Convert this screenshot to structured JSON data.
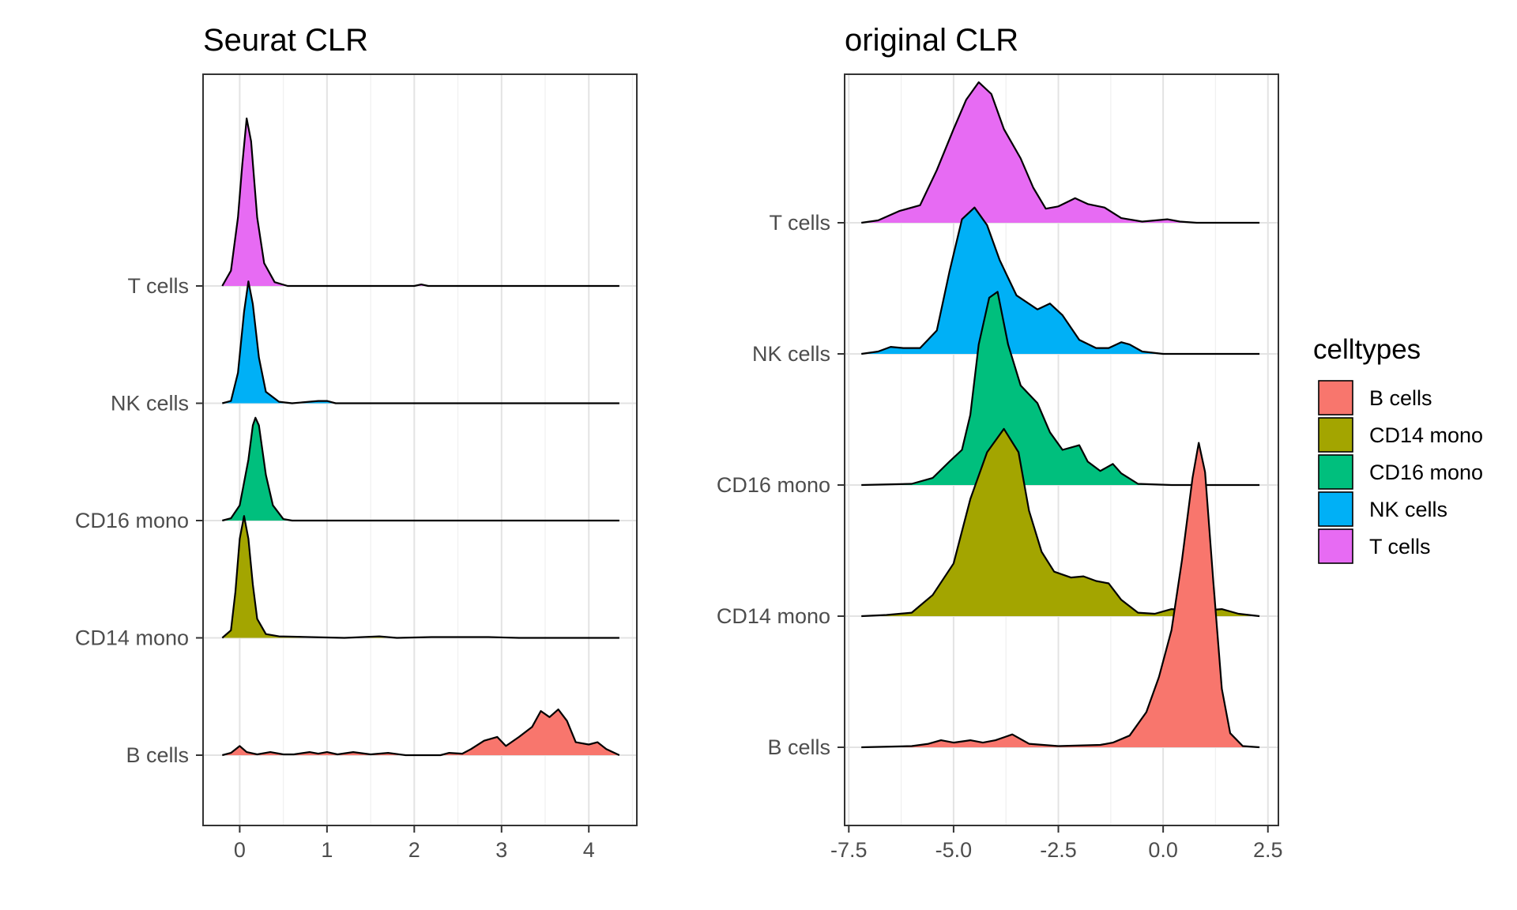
{
  "chart_data": {
    "type": "ridgeline",
    "legend": {
      "title": "celltypes",
      "position": "right",
      "entries": [
        {
          "name": "B cells",
          "color": "#F8766D"
        },
        {
          "name": "CD14 mono",
          "color": "#A3A500"
        },
        {
          "name": "CD16 mono",
          "color": "#00BF7D"
        },
        {
          "name": "NK cells",
          "color": "#00B0F6"
        },
        {
          "name": "T cells",
          "color": "#E76BF3"
        }
      ]
    },
    "panels": [
      {
        "title": "Seurat CLR",
        "xlim": [
          -0.42,
          4.55
        ],
        "xticks": [
          0,
          1,
          2,
          3,
          4
        ],
        "xtick_labels": [
          "0",
          "1",
          "2",
          "3",
          "4"
        ],
        "minor_grid": true,
        "grid": true,
        "ridge_unit": 1.54,
        "categories": [
          "B cells",
          "CD14 mono",
          "CD16 mono",
          "NK cells",
          "T cells"
        ],
        "series": [
          {
            "name": "B cells",
            "x_range": [
              -0.2,
              4.35
            ],
            "points": [
              [
                -0.2,
                0
              ],
              [
                -0.1,
                0.03
              ],
              [
                0.0,
                0.12
              ],
              [
                0.08,
                0.04
              ],
              [
                0.2,
                0.01
              ],
              [
                0.35,
                0.04
              ],
              [
                0.5,
                0.01
              ],
              [
                0.62,
                0.01
              ],
              [
                0.8,
                0.04
              ],
              [
                0.9,
                0.02
              ],
              [
                1.0,
                0.04
              ],
              [
                1.12,
                0.01
              ],
              [
                1.3,
                0.04
              ],
              [
                1.5,
                0.01
              ],
              [
                1.7,
                0.03
              ],
              [
                1.9,
                0
              ],
              [
                2.1,
                0
              ],
              [
                2.3,
                0
              ],
              [
                2.4,
                0.03
              ],
              [
                2.55,
                0.02
              ],
              [
                2.65,
                0.08
              ],
              [
                2.8,
                0.19
              ],
              [
                2.95,
                0.24
              ],
              [
                3.05,
                0.12
              ],
              [
                3.2,
                0.24
              ],
              [
                3.35,
                0.37
              ],
              [
                3.45,
                0.58
              ],
              [
                3.55,
                0.5
              ],
              [
                3.65,
                0.6
              ],
              [
                3.75,
                0.45
              ],
              [
                3.85,
                0.17
              ],
              [
                4.0,
                0.14
              ],
              [
                4.1,
                0.17
              ],
              [
                4.2,
                0.08
              ],
              [
                4.35,
                0
              ]
            ]
          },
          {
            "name": "CD14 mono",
            "x_range": [
              -0.2,
              4.35
            ],
            "points": [
              [
                -0.2,
                0
              ],
              [
                -0.1,
                0.1
              ],
              [
                -0.05,
                0.6
              ],
              [
                0.0,
                1.3
              ],
              [
                0.05,
                1.6
              ],
              [
                0.1,
                1.3
              ],
              [
                0.15,
                0.7
              ],
              [
                0.2,
                0.25
              ],
              [
                0.3,
                0.05
              ],
              [
                0.45,
                0.02
              ],
              [
                0.8,
                0.01
              ],
              [
                1.2,
                0
              ],
              [
                1.6,
                0.02
              ],
              [
                1.8,
                0
              ],
              [
                2.2,
                0.01
              ],
              [
                2.5,
                0.01
              ],
              [
                2.85,
                0.01
              ],
              [
                3.2,
                0
              ],
              [
                4.35,
                0
              ]
            ]
          },
          {
            "name": "CD16 mono",
            "x_range": [
              -0.2,
              4.35
            ],
            "points": [
              [
                -0.2,
                0
              ],
              [
                -0.1,
                0.03
              ],
              [
                0.0,
                0.2
              ],
              [
                0.1,
                0.8
              ],
              [
                0.15,
                1.25
              ],
              [
                0.18,
                1.35
              ],
              [
                0.22,
                1.25
              ],
              [
                0.3,
                0.6
              ],
              [
                0.38,
                0.2
              ],
              [
                0.5,
                0.02
              ],
              [
                0.6,
                0
              ],
              [
                4.35,
                0
              ]
            ]
          },
          {
            "name": "NK cells",
            "x_range": [
              -0.2,
              4.35
            ],
            "points": [
              [
                -0.2,
                0
              ],
              [
                -0.1,
                0.03
              ],
              [
                -0.02,
                0.4
              ],
              [
                0.05,
                1.2
              ],
              [
                0.1,
                1.6
              ],
              [
                0.15,
                1.3
              ],
              [
                0.22,
                0.6
              ],
              [
                0.3,
                0.15
              ],
              [
                0.45,
                0.02
              ],
              [
                0.6,
                0
              ],
              [
                0.9,
                0.03
              ],
              [
                1.0,
                0.03
              ],
              [
                1.1,
                0
              ],
              [
                4.35,
                0
              ]
            ]
          },
          {
            "name": "T cells",
            "x_range": [
              -0.2,
              4.35
            ],
            "points": [
              [
                -0.2,
                0
              ],
              [
                -0.1,
                0.2
              ],
              [
                -0.02,
                0.9
              ],
              [
                0.03,
                1.6
              ],
              [
                0.08,
                2.2
              ],
              [
                0.13,
                1.9
              ],
              [
                0.2,
                0.9
              ],
              [
                0.28,
                0.3
              ],
              [
                0.4,
                0.05
              ],
              [
                0.55,
                0
              ],
              [
                2.0,
                0
              ],
              [
                2.08,
                0.02
              ],
              [
                2.16,
                0
              ],
              [
                4.35,
                0
              ]
            ]
          }
        ]
      },
      {
        "title": "original CLR",
        "xlim": [
          -7.6,
          2.75
        ],
        "xticks": [
          -7.5,
          -5.0,
          -2.5,
          0.0,
          2.5
        ],
        "xtick_labels": [
          "-7.5",
          "-5.0",
          "-2.5",
          "0.0",
          "2.5"
        ],
        "minor_grid": true,
        "grid": true,
        "ridge_unit": 1.12,
        "categories": [
          "B cells",
          "CD14 mono",
          "CD16 mono",
          "NK cells",
          "T cells"
        ],
        "series": [
          {
            "name": "B cells",
            "x_range": [
              -7.2,
              2.3
            ],
            "points": [
              [
                -7.2,
                0
              ],
              [
                -6.0,
                0.01
              ],
              [
                -5.6,
                0.03
              ],
              [
                -5.3,
                0.06
              ],
              [
                -5.0,
                0.04
              ],
              [
                -4.6,
                0.06
              ],
              [
                -4.3,
                0.04
              ],
              [
                -4.0,
                0.06
              ],
              [
                -3.6,
                0.11
              ],
              [
                -3.2,
                0.03
              ],
              [
                -2.5,
                0.01
              ],
              [
                -1.5,
                0.02
              ],
              [
                -1.2,
                0.04
              ],
              [
                -0.8,
                0.1
              ],
              [
                -0.4,
                0.3
              ],
              [
                -0.1,
                0.6
              ],
              [
                0.2,
                1.0
              ],
              [
                0.45,
                1.6
              ],
              [
                0.7,
                2.3
              ],
              [
                0.85,
                2.6
              ],
              [
                1.0,
                2.35
              ],
              [
                1.2,
                1.4
              ],
              [
                1.4,
                0.5
              ],
              [
                1.6,
                0.12
              ],
              [
                1.9,
                0.01
              ],
              [
                2.3,
                0
              ]
            ]
          },
          {
            "name": "CD14 mono",
            "x_range": [
              -7.2,
              2.3
            ],
            "points": [
              [
                -7.2,
                0
              ],
              [
                -6.6,
                0.01
              ],
              [
                -6.0,
                0.03
              ],
              [
                -5.5,
                0.18
              ],
              [
                -5.0,
                0.45
              ],
              [
                -4.6,
                1.0
              ],
              [
                -4.2,
                1.4
              ],
              [
                -3.8,
                1.6
              ],
              [
                -3.45,
                1.4
              ],
              [
                -3.2,
                0.9
              ],
              [
                -2.9,
                0.55
              ],
              [
                -2.6,
                0.38
              ],
              [
                -2.2,
                0.33
              ],
              [
                -1.9,
                0.34
              ],
              [
                -1.6,
                0.3
              ],
              [
                -1.3,
                0.28
              ],
              [
                -1.0,
                0.14
              ],
              [
                -0.6,
                0.03
              ],
              [
                -0.2,
                0.02
              ],
              [
                0.2,
                0.06
              ],
              [
                0.6,
                0.05
              ],
              [
                1.0,
                0.05
              ],
              [
                1.4,
                0.06
              ],
              [
                1.8,
                0.02
              ],
              [
                2.3,
                0
              ]
            ]
          },
          {
            "name": "CD16 mono",
            "x_range": [
              -7.2,
              2.3
            ],
            "points": [
              [
                -7.2,
                0
              ],
              [
                -6.0,
                0.01
              ],
              [
                -5.5,
                0.06
              ],
              [
                -5.1,
                0.2
              ],
              [
                -4.8,
                0.3
              ],
              [
                -4.6,
                0.6
              ],
              [
                -4.4,
                1.2
              ],
              [
                -4.15,
                1.6
              ],
              [
                -3.95,
                1.65
              ],
              [
                -3.7,
                1.2
              ],
              [
                -3.4,
                0.85
              ],
              [
                -3.0,
                0.7
              ],
              [
                -2.7,
                0.45
              ],
              [
                -2.4,
                0.3
              ],
              [
                -2.0,
                0.34
              ],
              [
                -1.8,
                0.2
              ],
              [
                -1.5,
                0.12
              ],
              [
                -1.2,
                0.18
              ],
              [
                -1.0,
                0.1
              ],
              [
                -0.6,
                0.01
              ],
              [
                0.2,
                0
              ],
              [
                2.3,
                0
              ]
            ]
          },
          {
            "name": "NK cells",
            "x_range": [
              -7.2,
              2.3
            ],
            "points": [
              [
                -7.2,
                0
              ],
              [
                -6.8,
                0.02
              ],
              [
                -6.5,
                0.06
              ],
              [
                -6.2,
                0.05
              ],
              [
                -5.8,
                0.05
              ],
              [
                -5.4,
                0.2
              ],
              [
                -5.1,
                0.7
              ],
              [
                -4.8,
                1.15
              ],
              [
                -4.5,
                1.25
              ],
              [
                -4.2,
                1.1
              ],
              [
                -3.9,
                0.8
              ],
              [
                -3.5,
                0.5
              ],
              [
                -3.0,
                0.38
              ],
              [
                -2.7,
                0.43
              ],
              [
                -2.4,
                0.33
              ],
              [
                -2.0,
                0.12
              ],
              [
                -1.6,
                0.05
              ],
              [
                -1.3,
                0.05
              ],
              [
                -1.0,
                0.1
              ],
              [
                -0.8,
                0.08
              ],
              [
                -0.5,
                0.02
              ],
              [
                0.0,
                0
              ],
              [
                2.3,
                0
              ]
            ]
          },
          {
            "name": "T cells",
            "x_range": [
              -7.2,
              2.3
            ],
            "points": [
              [
                -7.2,
                0
              ],
              [
                -6.8,
                0.02
              ],
              [
                -6.3,
                0.1
              ],
              [
                -5.8,
                0.15
              ],
              [
                -5.4,
                0.45
              ],
              [
                -5.0,
                0.8
              ],
              [
                -4.7,
                1.05
              ],
              [
                -4.4,
                1.2
              ],
              [
                -4.1,
                1.1
              ],
              [
                -3.8,
                0.8
              ],
              [
                -3.4,
                0.55
              ],
              [
                -3.1,
                0.3
              ],
              [
                -2.8,
                0.12
              ],
              [
                -2.5,
                0.14
              ],
              [
                -2.1,
                0.21
              ],
              [
                -1.8,
                0.16
              ],
              [
                -1.4,
                0.13
              ],
              [
                -1.0,
                0.04
              ],
              [
                -0.5,
                0.01
              ],
              [
                0.1,
                0.03
              ],
              [
                0.4,
                0.01
              ],
              [
                0.8,
                0
              ],
              [
                2.3,
                0
              ]
            ]
          }
        ]
      }
    ]
  }
}
